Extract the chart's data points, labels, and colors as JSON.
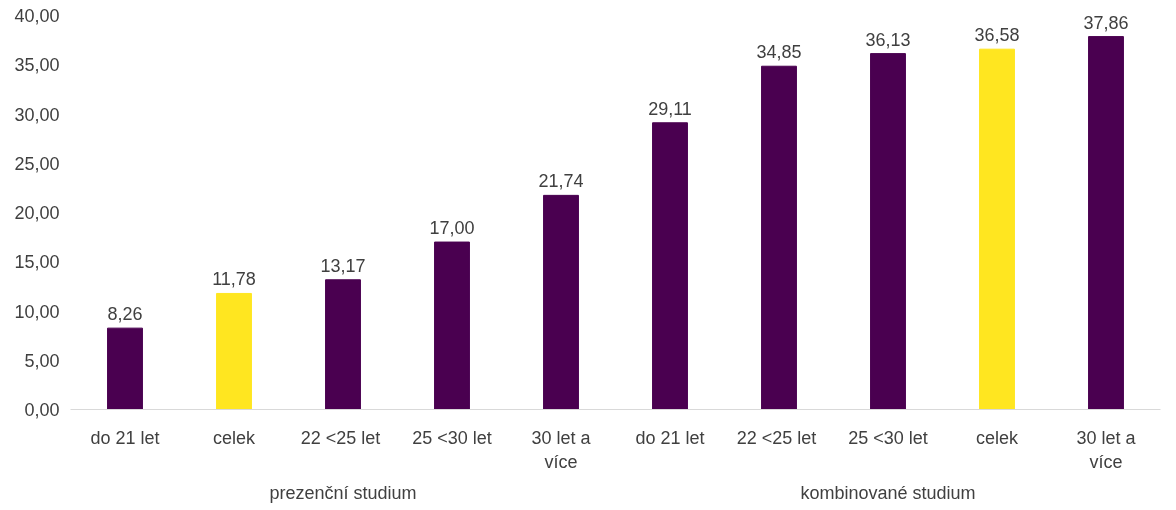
{
  "chart_data": {
    "type": "bar",
    "categories": [
      "do 21 let",
      "celek",
      "22  <25 let",
      "25 <30 let",
      "30 let a více",
      "do 21 let",
      "22  <25 let",
      "25 <30 let",
      "celek",
      "30 let a více"
    ],
    "values": [
      8.26,
      11.78,
      13.17,
      17.0,
      21.74,
      29.11,
      34.85,
      36.13,
      36.58,
      37.86
    ],
    "value_labels": [
      "8,26",
      "11,78",
      "13,17",
      "17,00",
      "21,74",
      "29,11",
      "34,85",
      "36,13",
      "36,58",
      "37,86"
    ],
    "colors": [
      "#4a0050",
      "#ffe620",
      "#4a0050",
      "#4a0050",
      "#4a0050",
      "#4a0050",
      "#4a0050",
      "#4a0050",
      "#ffe620",
      "#4a0050"
    ],
    "ylim": [
      0,
      40
    ],
    "yticks": [
      {
        "value": 0,
        "label": "0,00"
      },
      {
        "value": 5,
        "label": "5,00"
      },
      {
        "value": 10,
        "label": "10,00"
      },
      {
        "value": 15,
        "label": "15,00"
      },
      {
        "value": 20,
        "label": "20,00"
      },
      {
        "value": 25,
        "label": "25,00"
      },
      {
        "value": 30,
        "label": "30,00"
      },
      {
        "value": 35,
        "label": "35,00"
      },
      {
        "value": 40,
        "label": "40,00"
      }
    ],
    "annotations": [
      "prezenční studium",
      "kombinované studium"
    ],
    "grid": false
  }
}
